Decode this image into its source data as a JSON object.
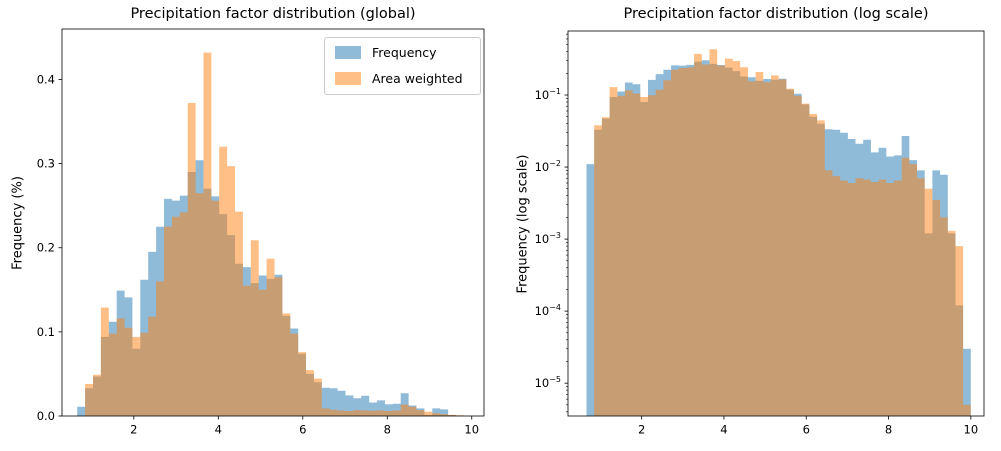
{
  "figure": {
    "background": "#ffffff"
  },
  "chart_data": {
    "type": "bar",
    "subtype": "overlapping-histograms",
    "bins": {
      "start": 0.66,
      "width": 0.1868,
      "count": 50
    },
    "series": [
      {
        "name": "Frequency",
        "color": "#1f77b4",
        "alpha": 0.5,
        "values": [
          0.011,
          0.033,
          0.047,
          0.094,
          0.112,
          0.149,
          0.141,
          0.08,
          0.162,
          0.195,
          0.225,
          0.258,
          0.256,
          0.262,
          0.29,
          0.304,
          0.27,
          0.261,
          0.24,
          0.215,
          0.181,
          0.177,
          0.158,
          0.167,
          0.163,
          0.168,
          0.119,
          0.104,
          0.074,
          0.05,
          0.04,
          0.0335,
          0.033,
          0.03,
          0.0245,
          0.021,
          0.024,
          0.016,
          0.0185,
          0.014,
          0.0145,
          0.027,
          0.0125,
          0.009,
          0.0012,
          0.009,
          0.0078,
          0.0012,
          0.00012,
          3e-05
        ]
      },
      {
        "name": "Area weighted",
        "color": "#ff7f0e",
        "alpha": 0.5,
        "values": [
          0,
          0.038,
          0.049,
          0.129,
          0.098,
          0.116,
          0.105,
          0.094,
          0.099,
          0.118,
          0.16,
          0.225,
          0.237,
          0.242,
          0.372,
          0.265,
          0.432,
          0.256,
          0.32,
          0.297,
          0.243,
          0.155,
          0.209,
          0.15,
          0.187,
          0.165,
          0.122,
          0.098,
          0.076,
          0.0545,
          0.0445,
          0.009,
          0.0075,
          0.0065,
          0.006,
          0.007,
          0.0067,
          0.0062,
          0.0067,
          0.006,
          0.0065,
          0.0135,
          0.011,
          0.007,
          0.005,
          0.0035,
          0.002,
          0.0013,
          0.0008,
          5e-06
        ]
      }
    ],
    "charts": [
      {
        "title": "Precipitation factor distribution (global)",
        "ylabel": "Frequency (%)",
        "yscale": "linear",
        "ylim": [
          0,
          0.46
        ],
        "xlim": [
          0.3,
          10.29
        ],
        "xticks": [
          2,
          4,
          6,
          8,
          10
        ],
        "yticks": [
          0.0,
          0.1,
          0.2,
          0.3,
          0.4
        ],
        "grid": false
      },
      {
        "title": "Precipitation factor distribution (log scale)",
        "ylabel": "Frequency (log scale)",
        "yscale": "log",
        "ylim": [
          3.5e-06,
          0.774
        ],
        "xlim": [
          0.21,
          10.32
        ],
        "xticks": [
          2,
          4,
          6,
          8,
          10
        ],
        "ytick_exponents": [
          -1,
          -2,
          -3,
          -4,
          -5
        ],
        "grid": false
      }
    ],
    "legend": {
      "position": "upper right of left chart",
      "entries": [
        "Frequency",
        "Area weighted"
      ]
    }
  }
}
